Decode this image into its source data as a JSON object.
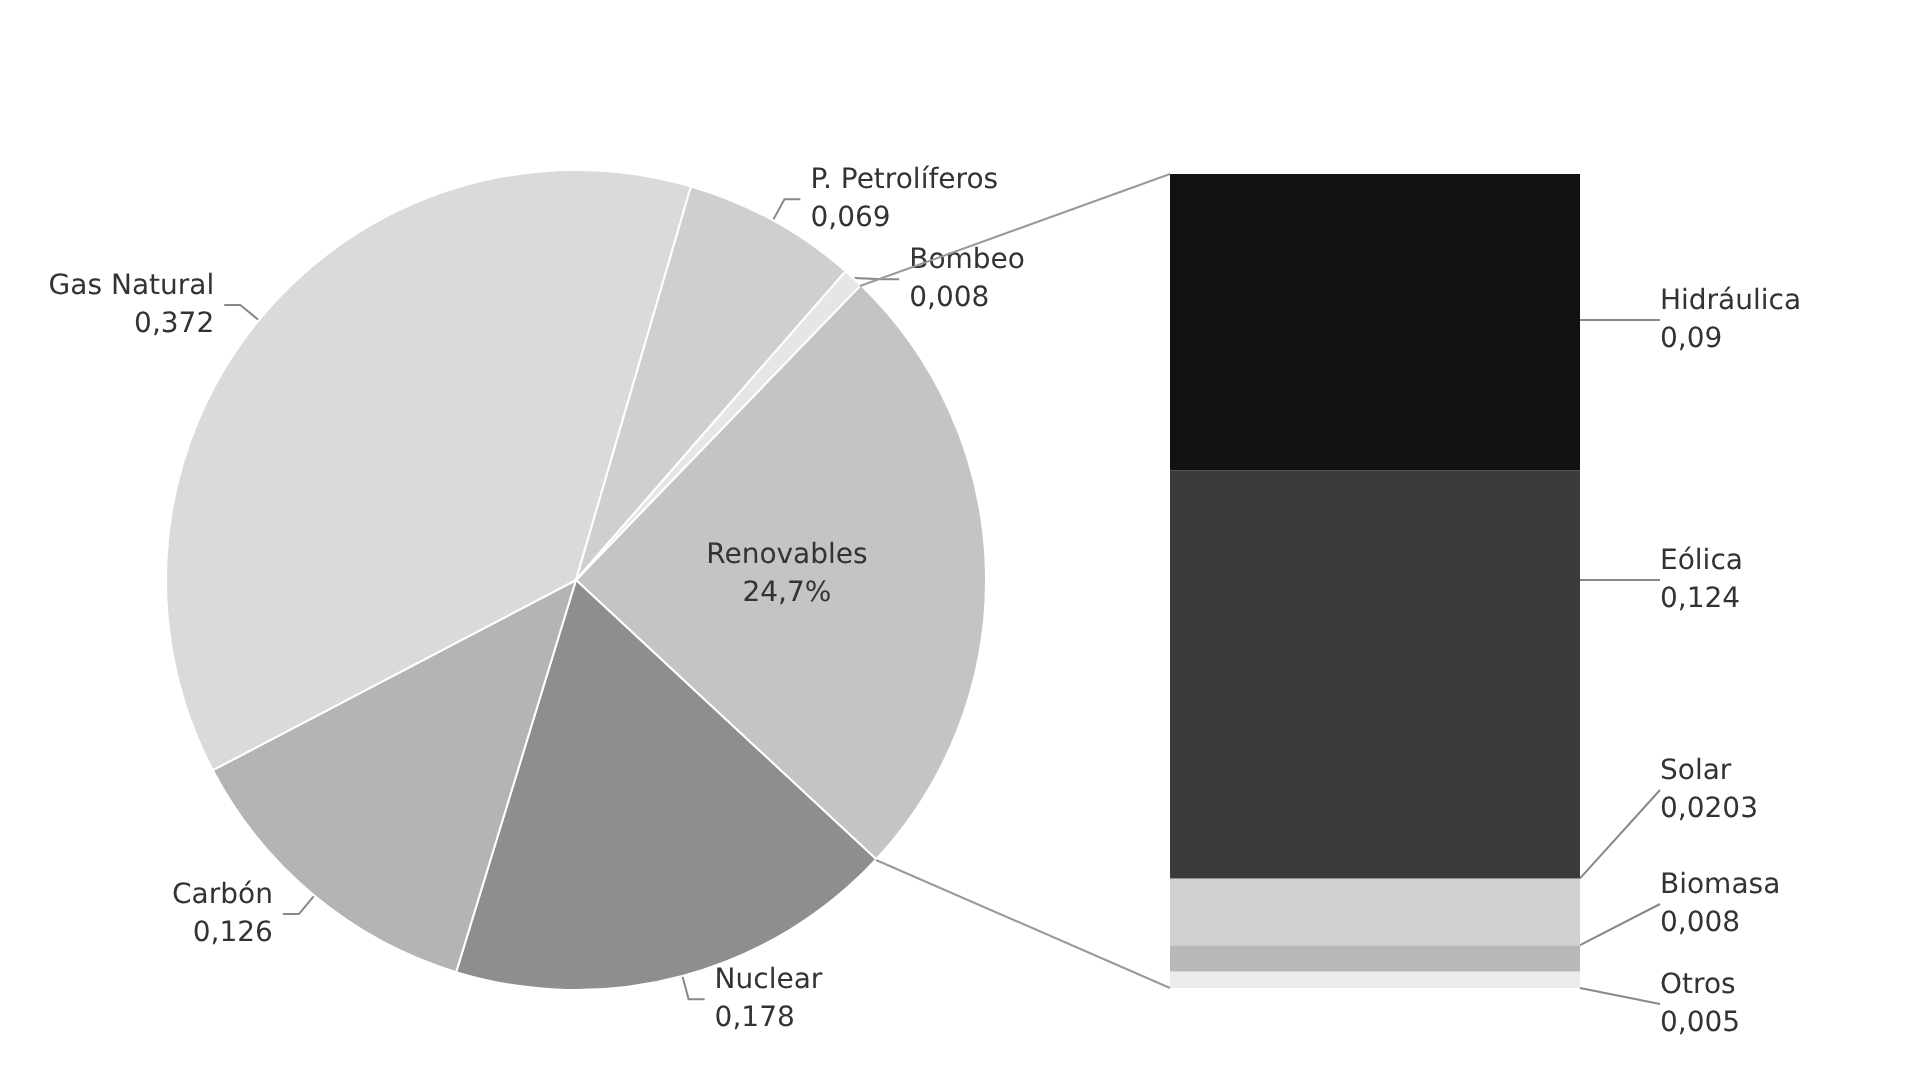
{
  "chart_data": [
    {
      "type": "pie",
      "categories": [
        "Renovables",
        "Nuclear",
        "Carbón",
        "Gas Natural",
        "P. Petrolíferos",
        "Bombeo"
      ],
      "values": [
        0.247,
        0.178,
        0.126,
        0.372,
        0.069,
        0.008
      ],
      "value_labels": [
        "24,7%",
        "0,178",
        "0,126",
        "0,372",
        "0,069",
        "0,008"
      ],
      "colors": [
        "#c4c4c4",
        "#8e8e8e",
        "#b4b4b4",
        "#dadada",
        "#cfcfcf",
        "#e6e6e6"
      ]
    },
    {
      "type": "bar",
      "categories": [
        null
      ],
      "stacked": true,
      "series": [
        {
          "name": "Otros",
          "color": "#ececec",
          "values": [
            0.005
          ],
          "value_labels": [
            "0,005"
          ]
        },
        {
          "name": "Biomasa",
          "color": "#b8b8b8",
          "values": [
            0.008
          ],
          "value_labels": [
            "0,008"
          ]
        },
        {
          "name": "Solar",
          "color": "#d0d0d0",
          "values": [
            0.0203
          ],
          "value_labels": [
            "0,0203"
          ]
        },
        {
          "name": "Eólica",
          "color": "#3a3a3a",
          "values": [
            0.124
          ],
          "value_labels": [
            "0,124"
          ]
        },
        {
          "name": "Hidráulica",
          "color": "#111111",
          "values": [
            0.09
          ],
          "value_labels": [
            "0,09"
          ]
        }
      ]
    }
  ]
}
